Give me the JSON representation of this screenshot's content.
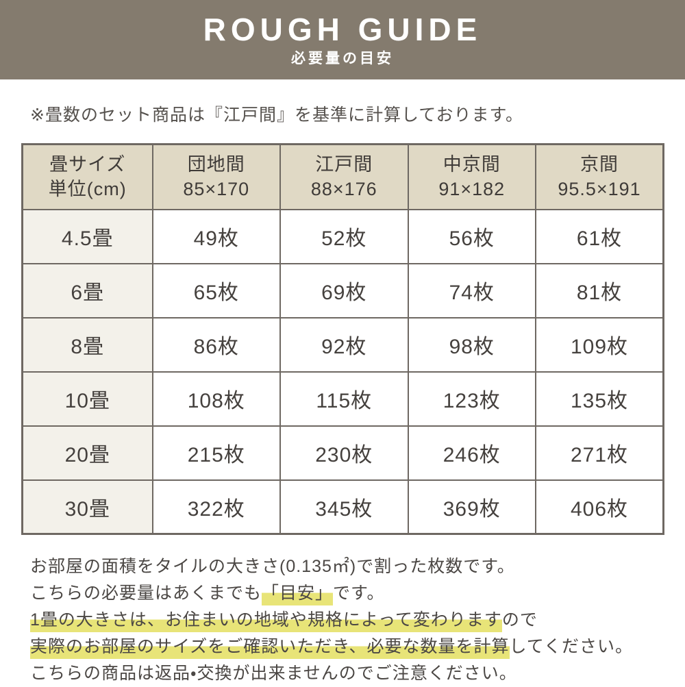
{
  "banner": {
    "title": "ROUGH GUIDE",
    "subtitle": "必要量の目安"
  },
  "note": "※畳数のセット商品は『江戸間』を基準に計算しております。",
  "table": {
    "columns": [
      {
        "line1": "畳サイズ",
        "line2": "単位(cm)"
      },
      {
        "line1": "団地間",
        "line2": "85×170"
      },
      {
        "line1": "江戸間",
        "line2": "88×176"
      },
      {
        "line1": "中京間",
        "line2": "91×182"
      },
      {
        "line1": "京間",
        "line2": "95.5×191"
      }
    ],
    "rows": [
      {
        "label": "4.5畳",
        "values": [
          "49枚",
          "52枚",
          "56枚",
          "61枚"
        ]
      },
      {
        "label": "6畳",
        "values": [
          "65枚",
          "69枚",
          "74枚",
          "81枚"
        ]
      },
      {
        "label": "8畳",
        "values": [
          "86枚",
          "92枚",
          "98枚",
          "109枚"
        ]
      },
      {
        "label": "10畳",
        "values": [
          "108枚",
          "115枚",
          "123枚",
          "135枚"
        ]
      },
      {
        "label": "20畳",
        "values": [
          "215枚",
          "230枚",
          "246枚",
          "271枚"
        ]
      },
      {
        "label": "30畳",
        "values": [
          "322枚",
          "345枚",
          "369枚",
          "406枚"
        ]
      }
    ]
  },
  "footer": {
    "line1": "お部屋の面積をタイルの大きさ(0.135㎡)で割った枚数です。",
    "line2_pre": "こちらの必要量はあくまでも",
    "line2_highlight": "「目安」",
    "line2_post": "です。",
    "line3_highlight": "1畳の大きさは、お住まいの地域や規格によって変わります",
    "line3_post": "ので",
    "line4_highlight": "実際のお部屋のサイズをご確認いただき、必要な数量を計算",
    "line4_post": "してください。",
    "line5": "こちらの商品は返品・交換が出来ませんのでご注意ください。"
  },
  "colors": {
    "banner_bg": "#847b6e",
    "table_header_bg": "#e0d9c5",
    "row_label_bg": "#f3f1ea",
    "border": "#6e6862",
    "highlight": "#e8e478",
    "text": "#474340"
  }
}
